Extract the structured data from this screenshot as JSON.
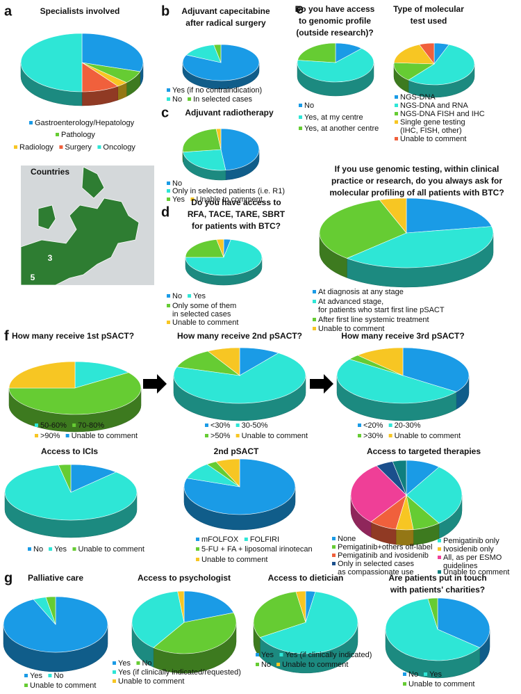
{
  "panels": [
    "a",
    "b",
    "c",
    "d",
    "e",
    "f",
    "g"
  ],
  "map": {
    "title": "Countries",
    "labels": [
      "3",
      "5"
    ]
  },
  "chart_data": [
    {
      "type": "pie",
      "title": "Specialists involved",
      "categories": [
        "Gastroenterology/Hepatology",
        "Pathology",
        "Radiology",
        "Surgery",
        "Oncology"
      ],
      "values": [
        30,
        7,
        3,
        10,
        50
      ],
      "colors": [
        "#1a9be6",
        "#66cc33",
        "#f7c623",
        "#f0603c",
        "#2ee6d6"
      ]
    },
    {
      "type": "pie",
      "title": "Adjuvant capecitabine\nafter radical surgery",
      "categories": [
        "Yes (if no contraindication)",
        "No",
        "In selected cases"
      ],
      "values": [
        82,
        15,
        3
      ],
      "colors": [
        "#1a9be6",
        "#2ee6d6",
        "#66cc33"
      ]
    },
    {
      "type": "pie",
      "title": "Adjuvant radiotherapy",
      "categories": [
        "No",
        "Only in selected patients (i.e. R1)",
        "Yes",
        "Unable to comment"
      ],
      "values": [
        48,
        25,
        25,
        2
      ],
      "colors": [
        "#1a9be6",
        "#2ee6d6",
        "#66cc33",
        "#f7c623"
      ]
    },
    {
      "type": "pie",
      "title": "Do you have access to\nRFA, TACE, TARE, SBRT\nfor patients with BTC?",
      "categories": [
        "No",
        "Yes",
        "Only some of them\nin selected cases",
        "Unable to comment"
      ],
      "values": [
        3,
        72,
        22,
        3
      ],
      "colors": [
        "#1a9be6",
        "#2ee6d6",
        "#66cc33",
        "#f7c623"
      ]
    },
    {
      "type": "pie",
      "title": "Do you have access\nto genomic profile\n(outside research)?",
      "categories": [
        "No",
        "Yes, at my centre",
        "Yes, at another centre"
      ],
      "values": [
        12,
        65,
        23
      ],
      "colors": [
        "#1a9be6",
        "#2ee6d6",
        "#66cc33"
      ]
    },
    {
      "type": "pie",
      "title": "Type of molecular\ntest used",
      "categories": [
        "NGS-DNA",
        "NGS-DNA and RNA",
        "NGS-DNA FISH and IHC",
        "Single gene testing\n(IHC, FISH, other)",
        "Unable to comment"
      ],
      "values": [
        6,
        55,
        15,
        18,
        6
      ],
      "colors": [
        "#1a9be6",
        "#2ee6d6",
        "#66cc33",
        "#f7c623",
        "#f0603c"
      ]
    },
    {
      "type": "pie",
      "title": "If you use genomic testing, within clinical\npractice or research, do you always ask for\nmolecular profiling of all patients with BTC?",
      "categories": [
        "At diagnosis at any stage",
        "At advanced stage,\nfor patients who start first line pSACT",
        "After first line systemic treatment",
        "Unable to comment"
      ],
      "values": [
        22,
        40,
        33,
        5
      ],
      "colors": [
        "#1a9be6",
        "#2ee6d6",
        "#66cc33",
        "#f7c623"
      ]
    },
    {
      "type": "pie",
      "title": "How many receive 1st pSACT?",
      "categories": [
        "50-60%",
        "70-80%",
        ">90%",
        "Unable to comment"
      ],
      "values": [
        15,
        60,
        25,
        0
      ],
      "colors": [
        "#2ee6d6",
        "#66cc33",
        "#f7c623",
        "#1a9be6"
      ]
    },
    {
      "type": "pie",
      "title": "How many receive 2nd pSACT?",
      "categories": [
        "<30%",
        "30-50%",
        ">50%",
        "Unable to comment"
      ],
      "values": [
        10,
        70,
        12,
        8
      ],
      "colors": [
        "#1a9be6",
        "#2ee6d6",
        "#66cc33",
        "#f7c623"
      ]
    },
    {
      "type": "pie",
      "title": "How many receive 3rd pSACT?",
      "categories": [
        "<20%",
        "20-30%",
        ">30%",
        "Unable to comment"
      ],
      "values": [
        35,
        50,
        3,
        12
      ],
      "colors": [
        "#1a9be6",
        "#2ee6d6",
        "#66cc33",
        "#f7c623"
      ]
    },
    {
      "type": "pie",
      "title": "Access to ICIs",
      "categories": [
        "No",
        "Yes",
        "Unable to comment"
      ],
      "values": [
        12,
        85,
        3
      ],
      "colors": [
        "#1a9be6",
        "#2ee6d6",
        "#66cc33"
      ]
    },
    {
      "type": "pie",
      "title": "2nd pSACT",
      "categories": [
        "mFOLFOX",
        "FOLFIRI",
        "5-FU + FA + liposomal irinotecan",
        "Unable to comment"
      ],
      "values": [
        80,
        10,
        3,
        7
      ],
      "colors": [
        "#1a9be6",
        "#2ee6d6",
        "#66cc33",
        "#f7c623"
      ]
    },
    {
      "type": "pie",
      "title": "Access to targeted therapies",
      "categories": [
        "None",
        "Pemigatinib only",
        "Pemigatinib+others off-label",
        "Ivosidenib only",
        "Pemigatinib and ivosidenib",
        "All, as per ESMO\nguidelines",
        "Only in selected cases\nas compassionate use",
        "Unable to comment"
      ],
      "values": [
        10,
        30,
        8,
        5,
        8,
        30,
        5,
        4
      ],
      "colors": [
        "#1a9be6",
        "#2ee6d6",
        "#66cc33",
        "#f7c623",
        "#f0603c",
        "#ef3f97",
        "#1b4f8c",
        "#0f7f7f"
      ]
    },
    {
      "type": "pie",
      "title": "Palliative care",
      "categories": [
        "Yes",
        "No",
        "Unable to comment"
      ],
      "values": [
        93,
        4,
        3
      ],
      "colors": [
        "#1a9be6",
        "#2ee6d6",
        "#66cc33"
      ]
    },
    {
      "type": "pie",
      "title": "Access to psychologist",
      "categories": [
        "Yes",
        "No",
        "Yes (if clinically indicated/requested)",
        "Unable to comment"
      ],
      "values": [
        20,
        40,
        38,
        2
      ],
      "colors": [
        "#1a9be6",
        "#66cc33",
        "#2ee6d6",
        "#f7c623"
      ]
    },
    {
      "type": "pie",
      "title": "Access to dietician",
      "categories": [
        "Yes",
        "Yes (if clinically indicated)",
        "No",
        "Unable to comment"
      ],
      "values": [
        3,
        64,
        30,
        3
      ],
      "colors": [
        "#1a9be6",
        "#2ee6d6",
        "#66cc33",
        "#f7c623"
      ]
    },
    {
      "type": "pie",
      "title": "Are patients put in touch\nwith patients' charities?",
      "categories": [
        "No",
        "Yes",
        "Unable to comment"
      ],
      "values": [
        35,
        62,
        3
      ],
      "colors": [
        "#1a9be6",
        "#2ee6d6",
        "#66cc33"
      ]
    }
  ]
}
